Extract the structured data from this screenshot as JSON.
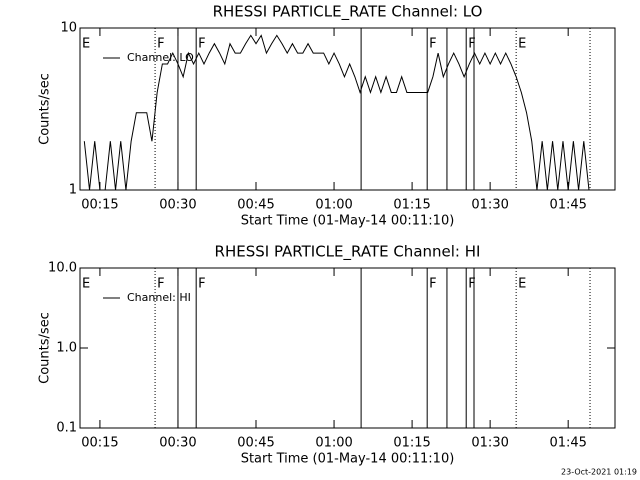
{
  "chart_data": [
    {
      "type": "line",
      "title": "RHESSI PARTICLE_RATE Channel: LO",
      "xlabel": "Start Time (01-May-14 00:11:10)",
      "ylabel": "Counts/sec",
      "log_y": true,
      "xlim": [
        11.17,
        114
      ],
      "ylim": [
        1,
        10
      ],
      "xticks": [
        {
          "value": 15,
          "label": "00:15"
        },
        {
          "value": 30,
          "label": "00:30"
        },
        {
          "value": 45,
          "label": "00:45"
        },
        {
          "value": 60,
          "label": "01:00"
        },
        {
          "value": 75,
          "label": "01:15"
        },
        {
          "value": 90,
          "label": "01:30"
        },
        {
          "value": 105,
          "label": "01:45"
        }
      ],
      "yticks": [
        1,
        10
      ],
      "x": [
        12,
        13,
        14,
        15,
        16,
        17,
        18,
        19,
        20,
        21,
        22,
        23,
        24,
        25,
        26,
        27,
        28,
        29,
        30,
        31,
        32,
        33,
        34,
        35,
        36,
        37,
        38,
        39,
        40,
        41,
        42,
        43,
        44,
        45,
        46,
        47,
        48,
        49,
        50,
        51,
        52,
        53,
        54,
        55,
        56,
        57,
        58,
        59,
        60,
        61,
        62,
        63,
        64,
        65,
        66,
        67,
        68,
        69,
        70,
        71,
        72,
        73,
        74,
        75,
        76,
        77,
        78,
        79,
        80,
        81,
        82,
        83,
        84,
        85,
        86,
        87,
        88,
        89,
        90,
        91,
        92,
        93,
        94,
        95,
        96,
        97,
        98,
        99,
        100,
        101,
        102,
        103,
        104,
        105,
        106,
        107,
        108,
        109
      ],
      "series": [
        {
          "name": "Channel: LO",
          "color": "#000000",
          "values": [
            2,
            1,
            2,
            1,
            1,
            2,
            1,
            2,
            1,
            2,
            3,
            3,
            3,
            2,
            4,
            6,
            6,
            7,
            6,
            5,
            7,
            6,
            7,
            6,
            7,
            8,
            7,
            6,
            8,
            7,
            7,
            8,
            9,
            8,
            9,
            7,
            8,
            9,
            8,
            7,
            8,
            7,
            7,
            8,
            7,
            7,
            7,
            6,
            7,
            6,
            5,
            6,
            5,
            4,
            5,
            4,
            5,
            4,
            5,
            4,
            4,
            5,
            4,
            4,
            4,
            4,
            4,
            5,
            7,
            5,
            6,
            7,
            6,
            5,
            6,
            7,
            6,
            7,
            6,
            7,
            6,
            7,
            6,
            5,
            4,
            3,
            2,
            1,
            2,
            1,
            2,
            1,
            2,
            1,
            2,
            1,
            2,
            1
          ]
        }
      ],
      "markers": [
        {
          "x": 11.17,
          "label": "E",
          "style": "dotted"
        },
        {
          "x": 25.6,
          "label": "F",
          "style": "dotted"
        },
        {
          "x": 30.0,
          "style": "solid"
        },
        {
          "x": 33.5,
          "label": "F",
          "style": "solid"
        },
        {
          "x": 65.2,
          "style": "solid"
        },
        {
          "x": 77.9,
          "label": "F",
          "style": "solid"
        },
        {
          "x": 81.7,
          "style": "solid"
        },
        {
          "x": 85.4,
          "label": "F",
          "style": "solid"
        },
        {
          "x": 86.9,
          "style": "solid"
        },
        {
          "x": 95.0,
          "label": "E",
          "style": "dotted"
        },
        {
          "x": 109.2,
          "style": "dotted"
        }
      ]
    },
    {
      "type": "line",
      "title": "RHESSI PARTICLE_RATE Channel: HI",
      "xlabel": "Start Time (01-May-14 00:11:10)",
      "ylabel": "Counts/sec",
      "log_y": true,
      "xlim": [
        11.17,
        114
      ],
      "ylim": [
        0.1,
        10
      ],
      "xticks": [
        {
          "value": 15,
          "label": "00:15"
        },
        {
          "value": 30,
          "label": "00:30"
        },
        {
          "value": 45,
          "label": "00:45"
        },
        {
          "value": 60,
          "label": "01:00"
        },
        {
          "value": 75,
          "label": "01:15"
        },
        {
          "value": 90,
          "label": "01:30"
        },
        {
          "value": 105,
          "label": "01:45"
        }
      ],
      "yticks": [
        0.1,
        {
          "value": 1,
          "label": "1.0"
        },
        {
          "value": 10,
          "label": "10.0"
        }
      ],
      "x": [],
      "series": [
        {
          "name": "Channel: HI",
          "color": "#000000",
          "values": []
        }
      ],
      "markers": [
        {
          "x": 11.17,
          "label": "E",
          "style": "dotted"
        },
        {
          "x": 25.6,
          "label": "F",
          "style": "dotted"
        },
        {
          "x": 30.0,
          "style": "solid"
        },
        {
          "x": 33.5,
          "label": "F",
          "style": "solid"
        },
        {
          "x": 65.2,
          "style": "solid"
        },
        {
          "x": 77.9,
          "label": "F",
          "style": "solid"
        },
        {
          "x": 81.7,
          "style": "solid"
        },
        {
          "x": 85.4,
          "label": "F",
          "style": "solid"
        },
        {
          "x": 86.9,
          "style": "solid"
        },
        {
          "x": 95.0,
          "label": "E",
          "style": "dotted"
        },
        {
          "x": 109.2,
          "style": "dotted"
        }
      ]
    }
  ],
  "footer": "23-Oct-2021 01:19"
}
